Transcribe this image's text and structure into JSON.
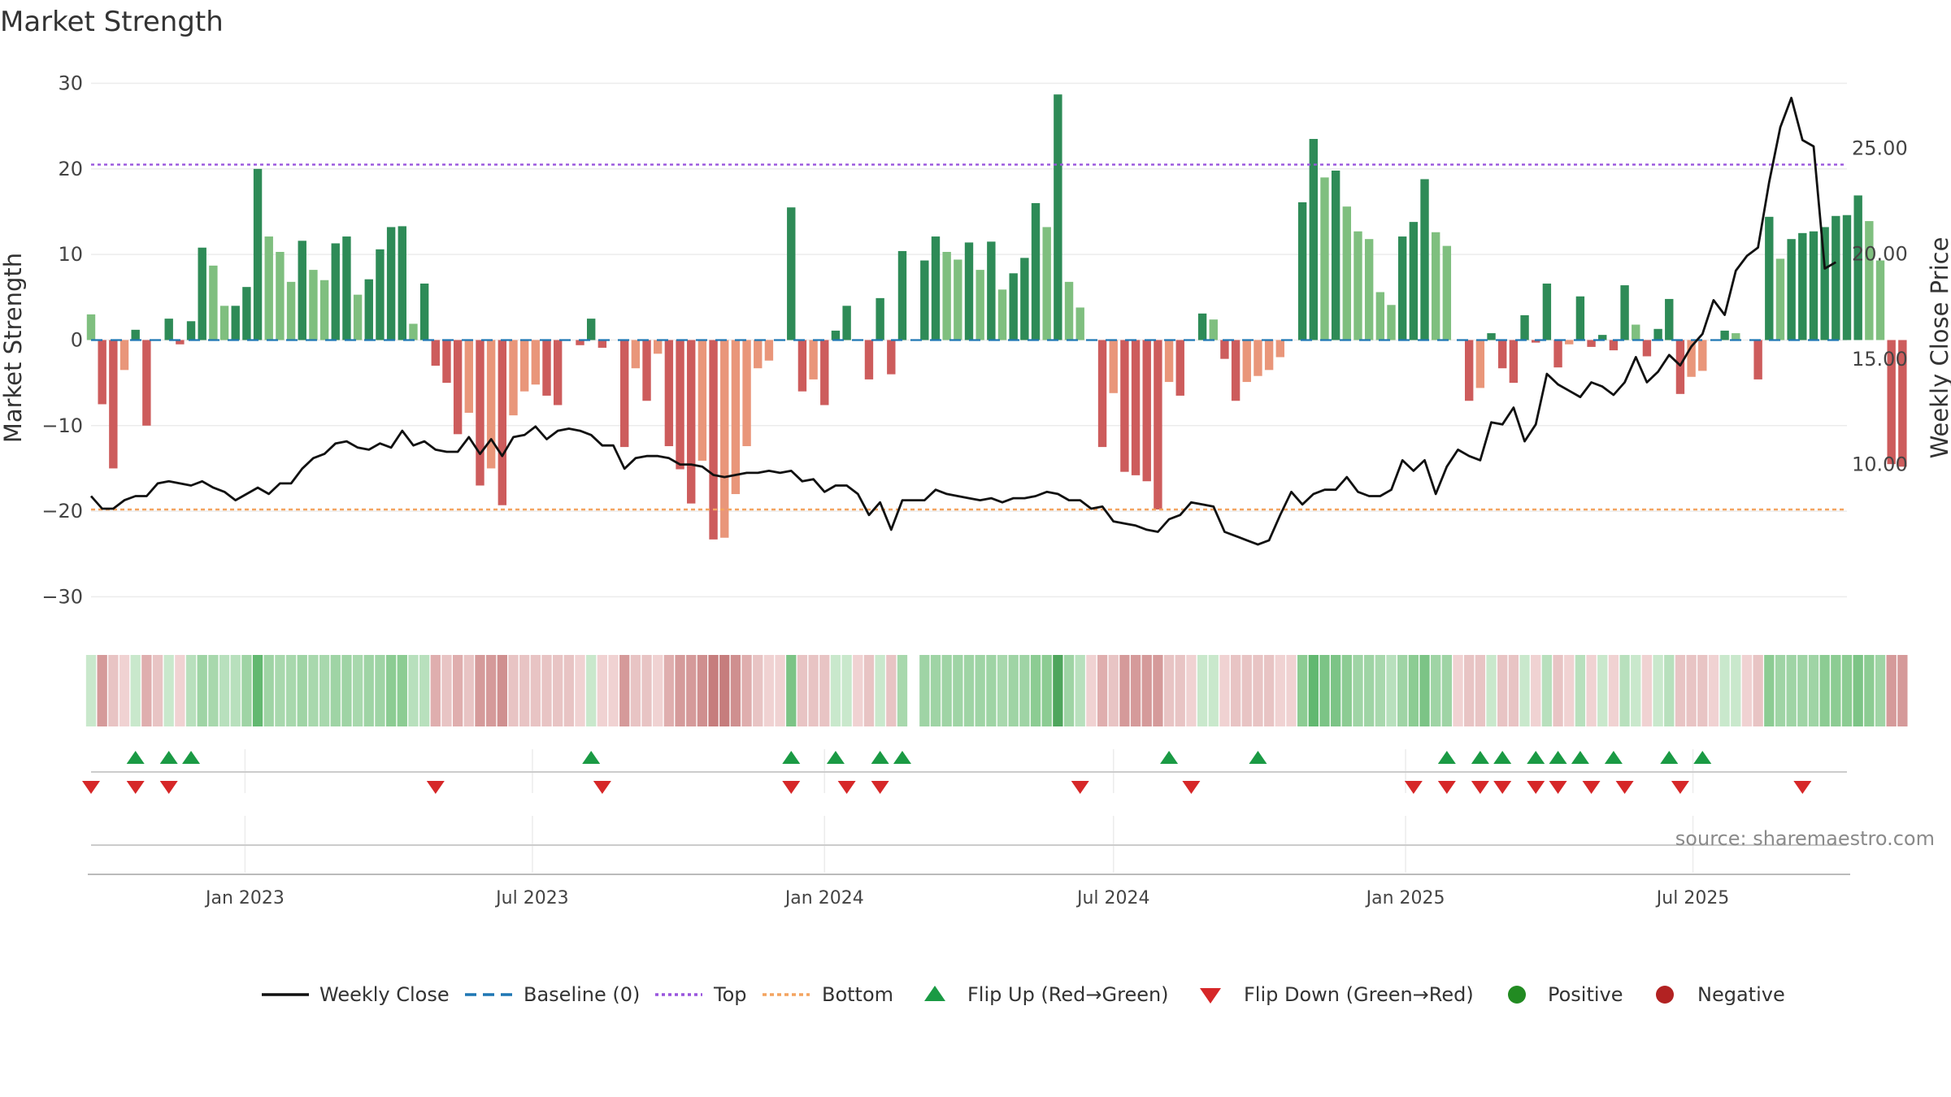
{
  "chart_data": {
    "type": "bar",
    "title": "Market Strength",
    "ylabel_left": "Market Strength",
    "ylabel_right": "Weekly Close Price",
    "source": "source: sharemaestro.com",
    "left_axis": {
      "ylim": [
        -33,
        31
      ],
      "ticks": [
        30,
        20,
        10,
        0,
        -10,
        -20,
        -30
      ],
      "tick_labels": [
        "30",
        "20",
        "10",
        "0",
        "−10",
        "−20",
        "−30"
      ]
    },
    "right_axis": {
      "ylim": [
        2.5,
        28.5
      ],
      "ticks": [
        25,
        20,
        15,
        10
      ],
      "tick_labels": [
        "25.00",
        "20.00",
        "15.00",
        "10.00"
      ]
    },
    "top_level": 20.5,
    "bottom_level": -19.8,
    "x_start": "2022-09-26",
    "x_end": "2025-10-06",
    "x_ticks": [
      {
        "date": "2023-01-01",
        "label": "Jan 2023"
      },
      {
        "date": "2023-07-01",
        "label": "Jul 2023"
      },
      {
        "date": "2024-01-01",
        "label": "Jan 2024"
      },
      {
        "date": "2024-07-01",
        "label": "Jul 2024"
      },
      {
        "date": "2025-01-01",
        "label": "Jan 2025"
      },
      {
        "date": "2025-07-01",
        "label": "Jul 2025"
      }
    ],
    "first_week": "2022-09-26",
    "strength": [
      3,
      -7.5,
      -15,
      -3.5,
      1.2,
      -10,
      0,
      2.5,
      -0.5,
      2.2,
      10.8,
      8.7,
      4,
      4,
      6.2,
      20,
      12.1,
      10.3,
      6.8,
      11.6,
      8.2,
      7,
      11.3,
      12.1,
      5.3,
      7.1,
      10.6,
      13.2,
      13.3,
      1.9,
      6.6,
      -3,
      -5,
      -11,
      -8.5,
      -17,
      -15,
      -19.3,
      -8.8,
      -6,
      -5.2,
      -6.5,
      -7.6,
      0,
      -0.6,
      2.5,
      -0.9,
      0,
      -12.5,
      -3.3,
      -7.1,
      -1.6,
      -12.4,
      -15.1,
      -19.1,
      -14.1,
      -23.3,
      -23.1,
      -18,
      -12.4,
      -3.3,
      -2.4,
      0,
      15.5,
      -6,
      -4.6,
      -7.6,
      1.1,
      4,
      0,
      -4.6,
      4.9,
      -4,
      10.4,
      0,
      9.3,
      12.1,
      10.3,
      9.4,
      11.4,
      8.2,
      11.5,
      5.9,
      7.8,
      9.6,
      16,
      13.2,
      28.7,
      6.8,
      3.8,
      0,
      -12.5,
      -6.2,
      -15.4,
      -15.8,
      -16.5,
      -19.8,
      -4.9,
      -6.5,
      0,
      3.1,
      2.4,
      -2.2,
      -7.1,
      -4.9,
      -4.2,
      -3.5,
      -2,
      0,
      16.1,
      23.5,
      19,
      19.8,
      15.6,
      12.7,
      11.8,
      5.6,
      4.1,
      12.1,
      13.8,
      18.8,
      12.6,
      11,
      0,
      -7.1,
      -5.6,
      0.8,
      -3.3,
      -5,
      2.9,
      -0.3,
      6.6,
      -3.2,
      -0.5,
      5.1,
      -0.8,
      0.6,
      -1.2,
      6.4,
      1.8,
      -1.9,
      1.3,
      4.8,
      -6.3,
      -4.3,
      -3.6,
      0,
      1.1,
      0.8,
      0,
      -4.6,
      14.4,
      9.5,
      11.8,
      12.5,
      12.7,
      13.2,
      14.5,
      14.6,
      16.9,
      13.9,
      9.3,
      -14.5,
      -14.8
    ],
    "weekly_close": [
      8.5,
      7.9,
      7.9,
      8.3,
      8.5,
      8.5,
      9.1,
      9.2,
      9.1,
      9,
      9.2,
      8.9,
      8.7,
      8.3,
      8.6,
      8.9,
      8.6,
      9.1,
      9.1,
      9.8,
      10.3,
      10.5,
      11,
      11.1,
      10.8,
      10.7,
      11,
      10.8,
      11.6,
      10.9,
      11.1,
      10.7,
      10.6,
      10.6,
      11.3,
      10.5,
      11.2,
      10.4,
      11.3,
      11.4,
      11.8,
      11.2,
      11.6,
      11.7,
      11.6,
      11.4,
      10.9,
      10.9,
      9.8,
      10.3,
      10.4,
      10.4,
      10.3,
      10,
      10,
      9.9,
      9.5,
      9.4,
      9.5,
      9.6,
      9.6,
      9.7,
      9.6,
      9.7,
      9.2,
      9.3,
      8.7,
      9,
      9,
      8.6,
      7.6,
      8.2,
      6.9,
      8.3,
      8.3,
      8.3,
      8.8,
      8.6,
      8.5,
      8.4,
      8.3,
      8.4,
      8.2,
      8.4,
      8.4,
      8.5,
      8.7,
      8.6,
      8.3,
      8.3,
      7.9,
      8,
      7.3,
      7.2,
      7.1,
      6.9,
      6.8,
      7.4,
      7.6,
      8.2,
      8.1,
      8,
      6.8,
      6.6,
      6.4,
      6.2,
      6.4,
      7.6,
      8.7,
      8.1,
      8.6,
      8.8,
      8.8,
      9.4,
      8.7,
      8.5,
      8.5,
      8.8,
      10.2,
      9.7,
      10.2,
      8.6,
      9.9,
      10.7,
      10.4,
      10.2,
      12,
      11.9,
      12.7,
      11.1,
      11.9,
      14.3,
      13.8,
      13.5,
      13.2,
      13.9,
      13.7,
      13.3,
      13.9,
      15.1,
      13.9,
      14.4,
      15.2,
      14.7,
      15.6,
      16.2,
      17.8,
      17.1,
      19.2,
      19.9,
      20.3,
      23.4,
      26,
      27.4,
      25.4,
      25.1,
      19.3,
      19.6
    ],
    "heat_colors": [
      "#c9e8cc",
      "#d59a9a",
      "#e8c4c4",
      "#f0d2d2",
      "#c9e8cc",
      "#dfaeae",
      "#e8c4c4",
      "#c9e8cc",
      "#f0d2d2",
      "#b8e0bd",
      "#9fd4a5",
      "#a8d8ad",
      "#b8e0bd",
      "#b8e0bd",
      "#9fd4a5",
      "#62b870",
      "#9fd4a5",
      "#a8d8ad",
      "#a8d8ad",
      "#9fd4a5",
      "#a8d8ad",
      "#a8d8ad",
      "#9fd4a5",
      "#9fd4a5",
      "#a8d8ad",
      "#9fd4a5",
      "#9fd4a5",
      "#8ccc93",
      "#8ccc93",
      "#b8e0bd",
      "#b8e0bd",
      "#dfaeae",
      "#e8c4c4",
      "#dfaeae",
      "#e8c4c4",
      "#d59a9a",
      "#d59a9a",
      "#cf8f8f",
      "#e8c4c4",
      "#e8c4c4",
      "#e8c4c4",
      "#e8c4c4",
      "#e8c4c4",
      "#e8c4c4",
      "#f0d2d2",
      "#c9e8cc",
      "#f0d2d2",
      "#f0d2d2",
      "#d59a9a",
      "#e8c4c4",
      "#e8c4c4",
      "#f0d2d2",
      "#dfaeae",
      "#d59a9a",
      "#d59a9a",
      "#cf8f8f",
      "#c67d7d",
      "#c67d7d",
      "#cf8f8f",
      "#dfaeae",
      "#e8c4c4",
      "#f0d2d2",
      "#f0d2d2",
      "#7cc486",
      "#e8c4c4",
      "#e8c4c4",
      "#e8c4c4",
      "#c9e8cc",
      "#c9e8cc",
      "#f0d2d2",
      "#e8c4c4",
      "#c9e8cc",
      "#e8c4c4",
      "#a8d8ad",
      "#ffffff",
      "#9fd4a5",
      "#9fd4a5",
      "#9fd4a5",
      "#9fd4a5",
      "#9fd4a5",
      "#9fd4a5",
      "#9fd4a5",
      "#a8d8ad",
      "#9fd4a5",
      "#9fd4a5",
      "#8ccc93",
      "#8ccc93",
      "#4ea55c",
      "#9fd4a5",
      "#b8e0bd",
      "#f0d2d2",
      "#dfaeae",
      "#e8c4c4",
      "#d59a9a",
      "#d59a9a",
      "#d59a9a",
      "#d59a9a",
      "#e8c4c4",
      "#e8c4c4",
      "#f0d2d2",
      "#c9e8cc",
      "#c9e8cc",
      "#f0d2d2",
      "#e8c4c4",
      "#e8c4c4",
      "#e8c4c4",
      "#e8c4c4",
      "#f0d2d2",
      "#f0d2d2",
      "#8ccc93",
      "#62b870",
      "#7cc486",
      "#7cc486",
      "#8ccc93",
      "#9fd4a5",
      "#9fd4a5",
      "#a8d8ad",
      "#b8e0bd",
      "#9fd4a5",
      "#8ccc93",
      "#7cc486",
      "#9fd4a5",
      "#9fd4a5",
      "#f0d2d2",
      "#e8c4c4",
      "#e8c4c4",
      "#c9e8cc",
      "#e8c4c4",
      "#e8c4c4",
      "#c9e8cc",
      "#f0d2d2",
      "#b8e0bd",
      "#e8c4c4",
      "#f0d2d2",
      "#b8e0bd",
      "#f0d2d2",
      "#c9e8cc",
      "#f0d2d2",
      "#b8e0bd",
      "#c9e8cc",
      "#f0d2d2",
      "#c9e8cc",
      "#b8e0bd",
      "#e8c4c4",
      "#e8c4c4",
      "#e8c4c4",
      "#f0d2d2",
      "#c9e8cc",
      "#c9e8cc",
      "#f0d2d2",
      "#e8c4c4",
      "#8ccc93",
      "#9fd4a5",
      "#9fd4a5",
      "#9fd4a5",
      "#9fd4a5",
      "#8ccc93",
      "#8ccc93",
      "#8ccc93",
      "#7cc486",
      "#8ccc93",
      "#9fd4a5",
      "#d59a9a",
      "#d59a9a"
    ],
    "flip_up_weeks": [
      4,
      7,
      9,
      45,
      63,
      67,
      71,
      73,
      97,
      105,
      122,
      125,
      127,
      130,
      132,
      134,
      137,
      142,
      145
    ],
    "flip_down_weeks": [
      0,
      4,
      7,
      31,
      46,
      63,
      68,
      71,
      89,
      99,
      119,
      122,
      125,
      127,
      130,
      132,
      135,
      138,
      143,
      154
    ],
    "legend": [
      "Weekly Close",
      "Baseline (0)",
      "Top",
      "Bottom",
      "Flip Up (Red→Green)",
      "Flip Down (Green→Red)",
      "Positive",
      "Negative"
    ],
    "colors": {
      "pos_strong": "#2e8b57",
      "pos_light": "#7fbf7f",
      "neg_strong": "#cd5c5c",
      "neg_light": "#e9967a",
      "line": "#111111",
      "baseline": "#1f77b4",
      "top": "#9955dd",
      "bottom": "#f4a460",
      "flip_up": "#1a9a44",
      "flip_down": "#d62728",
      "positive": "#228b22",
      "negative": "#b22222"
    }
  }
}
